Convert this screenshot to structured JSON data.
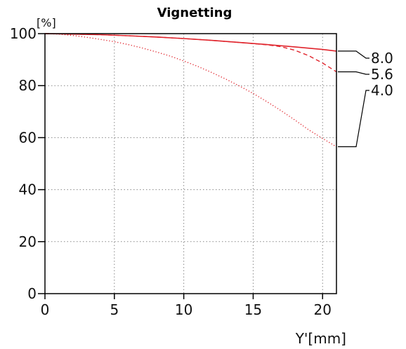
{
  "chart_data": {
    "type": "line",
    "title": "Vignetting",
    "ylabel": "[%]",
    "xlabel": "Y'[mm]",
    "xlim": [
      0,
      21
    ],
    "ylim": [
      0,
      100
    ],
    "xticks": [
      0,
      5,
      10,
      15,
      20
    ],
    "yticks": [
      0,
      20,
      40,
      60,
      80,
      100
    ],
    "grid": true,
    "legend_placement": "right, at line ends",
    "colors": {
      "series": "#e0242c",
      "axis": "#000000",
      "grid": "#888888"
    },
    "series": [
      {
        "name": "8.0",
        "style": "solid",
        "x": [
          0,
          2,
          4,
          6,
          8,
          10,
          12,
          14,
          16,
          18,
          20,
          21
        ],
        "y": [
          100,
          99.8,
          99.6,
          99.2,
          98.7,
          98.1,
          97.4,
          96.6,
          95.8,
          94.9,
          93.9,
          93.3
        ]
      },
      {
        "name": "5.6",
        "style": "dashed",
        "x": [
          0,
          2,
          4,
          6,
          8,
          10,
          12,
          14,
          16,
          17,
          18,
          19,
          20,
          21
        ],
        "y": [
          100,
          99.8,
          99.6,
          99.2,
          98.7,
          98.1,
          97.4,
          96.6,
          95.7,
          95.0,
          93.6,
          91.5,
          88.7,
          85.3
        ]
      },
      {
        "name": "4.0",
        "style": "dotted",
        "x": [
          0,
          1,
          2,
          3,
          4,
          5,
          6,
          7,
          8,
          9,
          10,
          11,
          12,
          13,
          14,
          15,
          16,
          17,
          18,
          19,
          20,
          21
        ],
        "y": [
          100,
          99.8,
          99.3,
          98.6,
          97.8,
          96.9,
          95.8,
          94.5,
          93.0,
          91.4,
          89.5,
          87.4,
          85.1,
          82.6,
          79.9,
          77.0,
          73.8,
          70.4,
          66.8,
          63.0,
          59.7,
          56.5
        ]
      }
    ]
  }
}
